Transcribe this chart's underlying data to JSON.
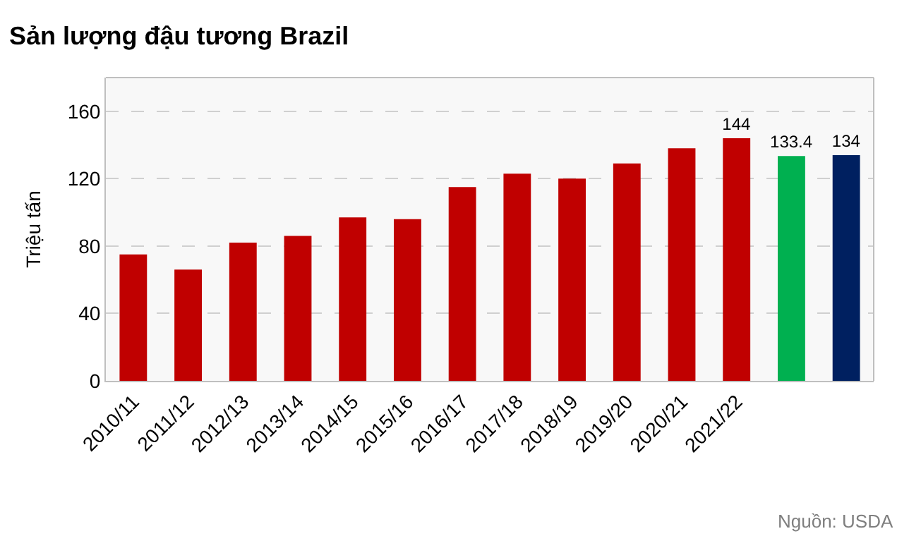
{
  "chart_data": {
    "type": "bar",
    "title": "Sản lượng đậu tương Brazil",
    "ylabel": "Triệu tấn",
    "categories": [
      "2010/11",
      "2011/12",
      "2012/13",
      "2013/14",
      "2014/15",
      "2015/16",
      "2016/17",
      "2017/18",
      "2018/19",
      "2019/20",
      "2020/21",
      "2021/22",
      null,
      null
    ],
    "values": [
      75,
      66,
      82,
      86,
      97,
      96,
      115,
      123,
      120,
      129,
      138,
      144,
      133.4,
      134
    ],
    "colors": [
      "#c00000",
      "#c00000",
      "#c00000",
      "#c00000",
      "#c00000",
      "#c00000",
      "#c00000",
      "#c00000",
      "#c00000",
      "#c00000",
      "#c00000",
      "#c00000",
      "#00b050",
      "#002060"
    ],
    "value_labels": [
      null,
      null,
      null,
      null,
      null,
      null,
      null,
      null,
      null,
      null,
      null,
      "144",
      "133.4",
      "134"
    ],
    "ylim": [
      0,
      180
    ],
    "yticks": [
      0,
      40,
      80,
      120,
      160
    ],
    "grid": "y",
    "annotations": [
      "Nguồn: USDA"
    ]
  }
}
